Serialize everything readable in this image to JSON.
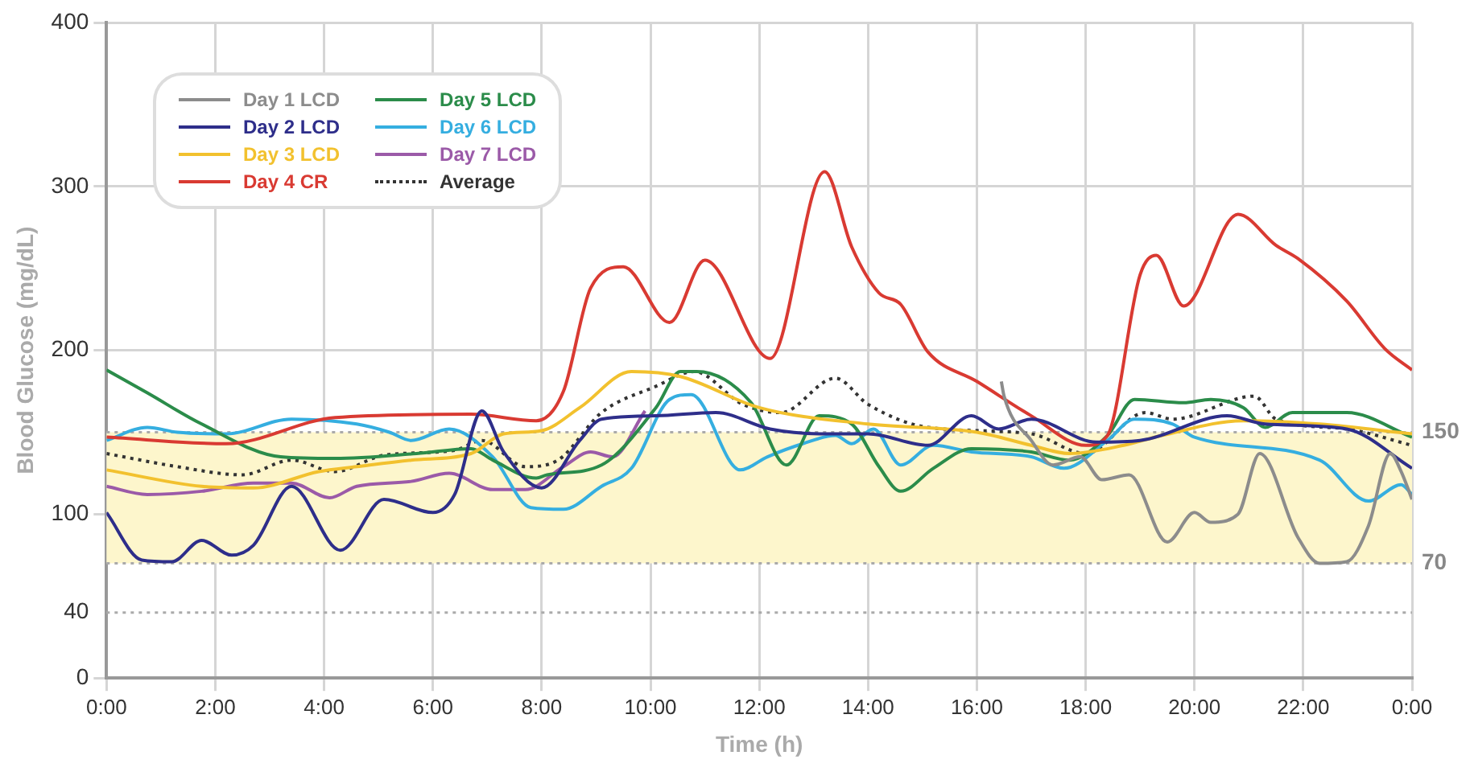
{
  "chart_data": {
    "type": "line",
    "xlabel": "Time (h)",
    "ylabel": "Blood Glucose (mg/dL)",
    "xlim": [
      0,
      24
    ],
    "xticks": [
      {
        "value": 0,
        "label": "0:00"
      },
      {
        "value": 2,
        "label": "2:00"
      },
      {
        "value": 4,
        "label": "4:00"
      },
      {
        "value": 6,
        "label": "6:00"
      },
      {
        "value": 8,
        "label": "8:00"
      },
      {
        "value": 10,
        "label": "10:00"
      },
      {
        "value": 12,
        "label": "12:00"
      },
      {
        "value": 14,
        "label": "14:00"
      },
      {
        "value": 16,
        "label": "16:00"
      },
      {
        "value": 18,
        "label": "18:00"
      },
      {
        "value": 20,
        "label": "20:00"
      },
      {
        "value": 22,
        "label": "22:00"
      },
      {
        "value": 24,
        "label": "0:00"
      }
    ],
    "ylim": [
      0,
      400
    ],
    "yticks": [
      0,
      40,
      100,
      200,
      300,
      400
    ],
    "grid": true,
    "legend": "top left",
    "marker": "none",
    "line_style": "solid",
    "bands": [
      {
        "axis": "y",
        "from": 70,
        "to": 150,
        "color": "#fdf6cc"
      }
    ],
    "ref_lines": [
      {
        "axis": "y",
        "value": 150,
        "label": "150",
        "line_style": "dotted"
      },
      {
        "axis": "y",
        "value": 70,
        "label": "70",
        "line_style": "dotted"
      },
      {
        "axis": "y",
        "value": 40,
        "line_style": "dotted"
      }
    ],
    "series": [
      {
        "name": "Day 1 LCD",
        "color": "#8c8c8c",
        "x": [
          16.45,
          16.5,
          17.0,
          17.4,
          17.9,
          18.3,
          18.8,
          19.5,
          20.0,
          20.3,
          20.8,
          21.2,
          21.9,
          22.3,
          22.8,
          23.2,
          23.6,
          23.8,
          24
        ],
        "values": [
          181,
          172,
          145,
          130,
          135,
          121,
          124,
          83,
          101,
          95,
          100,
          137,
          86,
          70,
          71,
          93,
          137,
          126,
          109
        ]
      },
      {
        "name": "Day 2 LCD",
        "color": "#2e2e8a",
        "x": [
          0,
          0.65,
          1.2,
          1.75,
          2.3,
          2.7,
          3.4,
          4.3,
          5.1,
          6.0,
          6.4,
          6.9,
          7.3,
          8.0,
          8.7,
          9.1,
          10.1,
          11.2,
          12.2,
          13.2,
          14.0,
          15.1,
          15.9,
          16.4,
          17.0,
          18.2,
          19.0,
          20.6,
          21.3,
          22.8,
          24
        ],
        "values": [
          101,
          72,
          71,
          84,
          75,
          81,
          117,
          78,
          109,
          101,
          112,
          163,
          138,
          116,
          145,
          158,
          160,
          162,
          152,
          149,
          149,
          142,
          160,
          152,
          158,
          144,
          145,
          160,
          155,
          152,
          128
        ]
      },
      {
        "name": "Day 3 LCD",
        "color": "#f2c12e",
        "x": [
          0,
          1.75,
          2.7,
          3.9,
          4.6,
          5.6,
          6.7,
          7.3,
          8.0,
          8.7,
          9.65,
          10.55,
          12.0,
          14.0,
          16.0,
          17.0,
          17.7,
          18.7,
          19.4,
          20.9,
          22.3,
          24
        ],
        "values": [
          127,
          117,
          116,
          126,
          129,
          133,
          137,
          149,
          151,
          165,
          187,
          184,
          165,
          155,
          150,
          142,
          137,
          142,
          148,
          157,
          155,
          149
        ]
      },
      {
        "name": "Day 4 CR",
        "color": "#d93a32",
        "x": [
          0,
          2.2,
          4.2,
          6.7,
          7.9,
          8.4,
          8.9,
          9.5,
          10.35,
          11.0,
          12.2,
          13.2,
          13.7,
          14.2,
          14.6,
          15.1,
          16.0,
          17.0,
          18.0,
          18.4,
          19.0,
          19.3,
          19.8,
          20.8,
          21.5,
          21.9,
          22.8,
          23.5,
          24
        ],
        "values": [
          147,
          143,
          159,
          161,
          157,
          175,
          238,
          251,
          217,
          255,
          195,
          309,
          263,
          235,
          228,
          199,
          181,
          160,
          142,
          148,
          246,
          258,
          227,
          283,
          264,
          256,
          230,
          201,
          188
        ]
      },
      {
        "name": "Day 5 LCD",
        "color": "#2b8c4a",
        "x": [
          0,
          0.75,
          1.75,
          3.2,
          4.2,
          5.7,
          6.7,
          7.1,
          7.9,
          8.1,
          9.1,
          10.1,
          10.55,
          10.85,
          11.85,
          12.5,
          13.1,
          13.7,
          14.2,
          14.6,
          15.2,
          15.9,
          17.0,
          17.7,
          18.4,
          18.9,
          19.8,
          20.3,
          20.9,
          21.3,
          21.8,
          22.8,
          24
        ],
        "values": [
          188,
          174,
          155,
          135,
          134,
          137,
          140,
          133,
          122,
          124,
          130,
          165,
          187,
          187,
          168,
          130,
          160,
          155,
          129,
          114,
          128,
          140,
          138,
          133,
          148,
          170,
          168,
          170,
          165,
          153,
          162,
          162,
          147
        ]
      },
      {
        "name": "Day 6 LCD",
        "color": "#35aee0",
        "x": [
          0,
          0.75,
          1.3,
          2.2,
          3.4,
          4.6,
          5.2,
          5.6,
          6.3,
          7.1,
          7.8,
          8.4,
          9.1,
          9.65,
          10.35,
          10.75,
          11.65,
          12.15,
          12.8,
          13.4,
          13.7,
          14.1,
          14.6,
          15.2,
          15.9,
          17.0,
          17.6,
          18.4,
          18.9,
          19.6,
          20.0,
          22.3,
          23.2,
          23.8,
          24
        ],
        "values": [
          145,
          153,
          150,
          149,
          158,
          155,
          150,
          145,
          152,
          135,
          104,
          103,
          117,
          128,
          170,
          173,
          127,
          135,
          143,
          148,
          143,
          152,
          130,
          142,
          138,
          135,
          128,
          145,
          158,
          155,
          147,
          133,
          108,
          118,
          112
        ]
      },
      {
        "name": "Day 7 LCD",
        "color": "#9b5aa8",
        "x": [
          0,
          0.75,
          1.75,
          2.7,
          3.4,
          4.1,
          4.6,
          5.6,
          6.3,
          7.1,
          7.7,
          8.4,
          8.9,
          9.3,
          9.9
        ],
        "values": [
          117,
          112,
          114,
          119,
          119,
          110,
          117,
          120,
          125,
          115,
          115,
          129,
          138,
          135,
          163
        ]
      },
      {
        "name": "Average",
        "color": "#333333",
        "line_style": "dotted",
        "x": [
          0,
          1.3,
          2.5,
          3.4,
          4.2,
          5.1,
          6.4,
          6.9,
          7.7,
          8.3,
          9.1,
          10.1,
          10.8,
          11.7,
          12.4,
          13.4,
          14.0,
          15.1,
          17.0,
          18.0,
          19.1,
          19.6,
          21.1,
          21.5,
          22.8,
          24
        ],
        "values": [
          137,
          129,
          124,
          133,
          126,
          136,
          139,
          145,
          129,
          133,
          162,
          178,
          187,
          167,
          162,
          183,
          167,
          153,
          149,
          137,
          162,
          158,
          172,
          158,
          152,
          142
        ]
      }
    ]
  }
}
